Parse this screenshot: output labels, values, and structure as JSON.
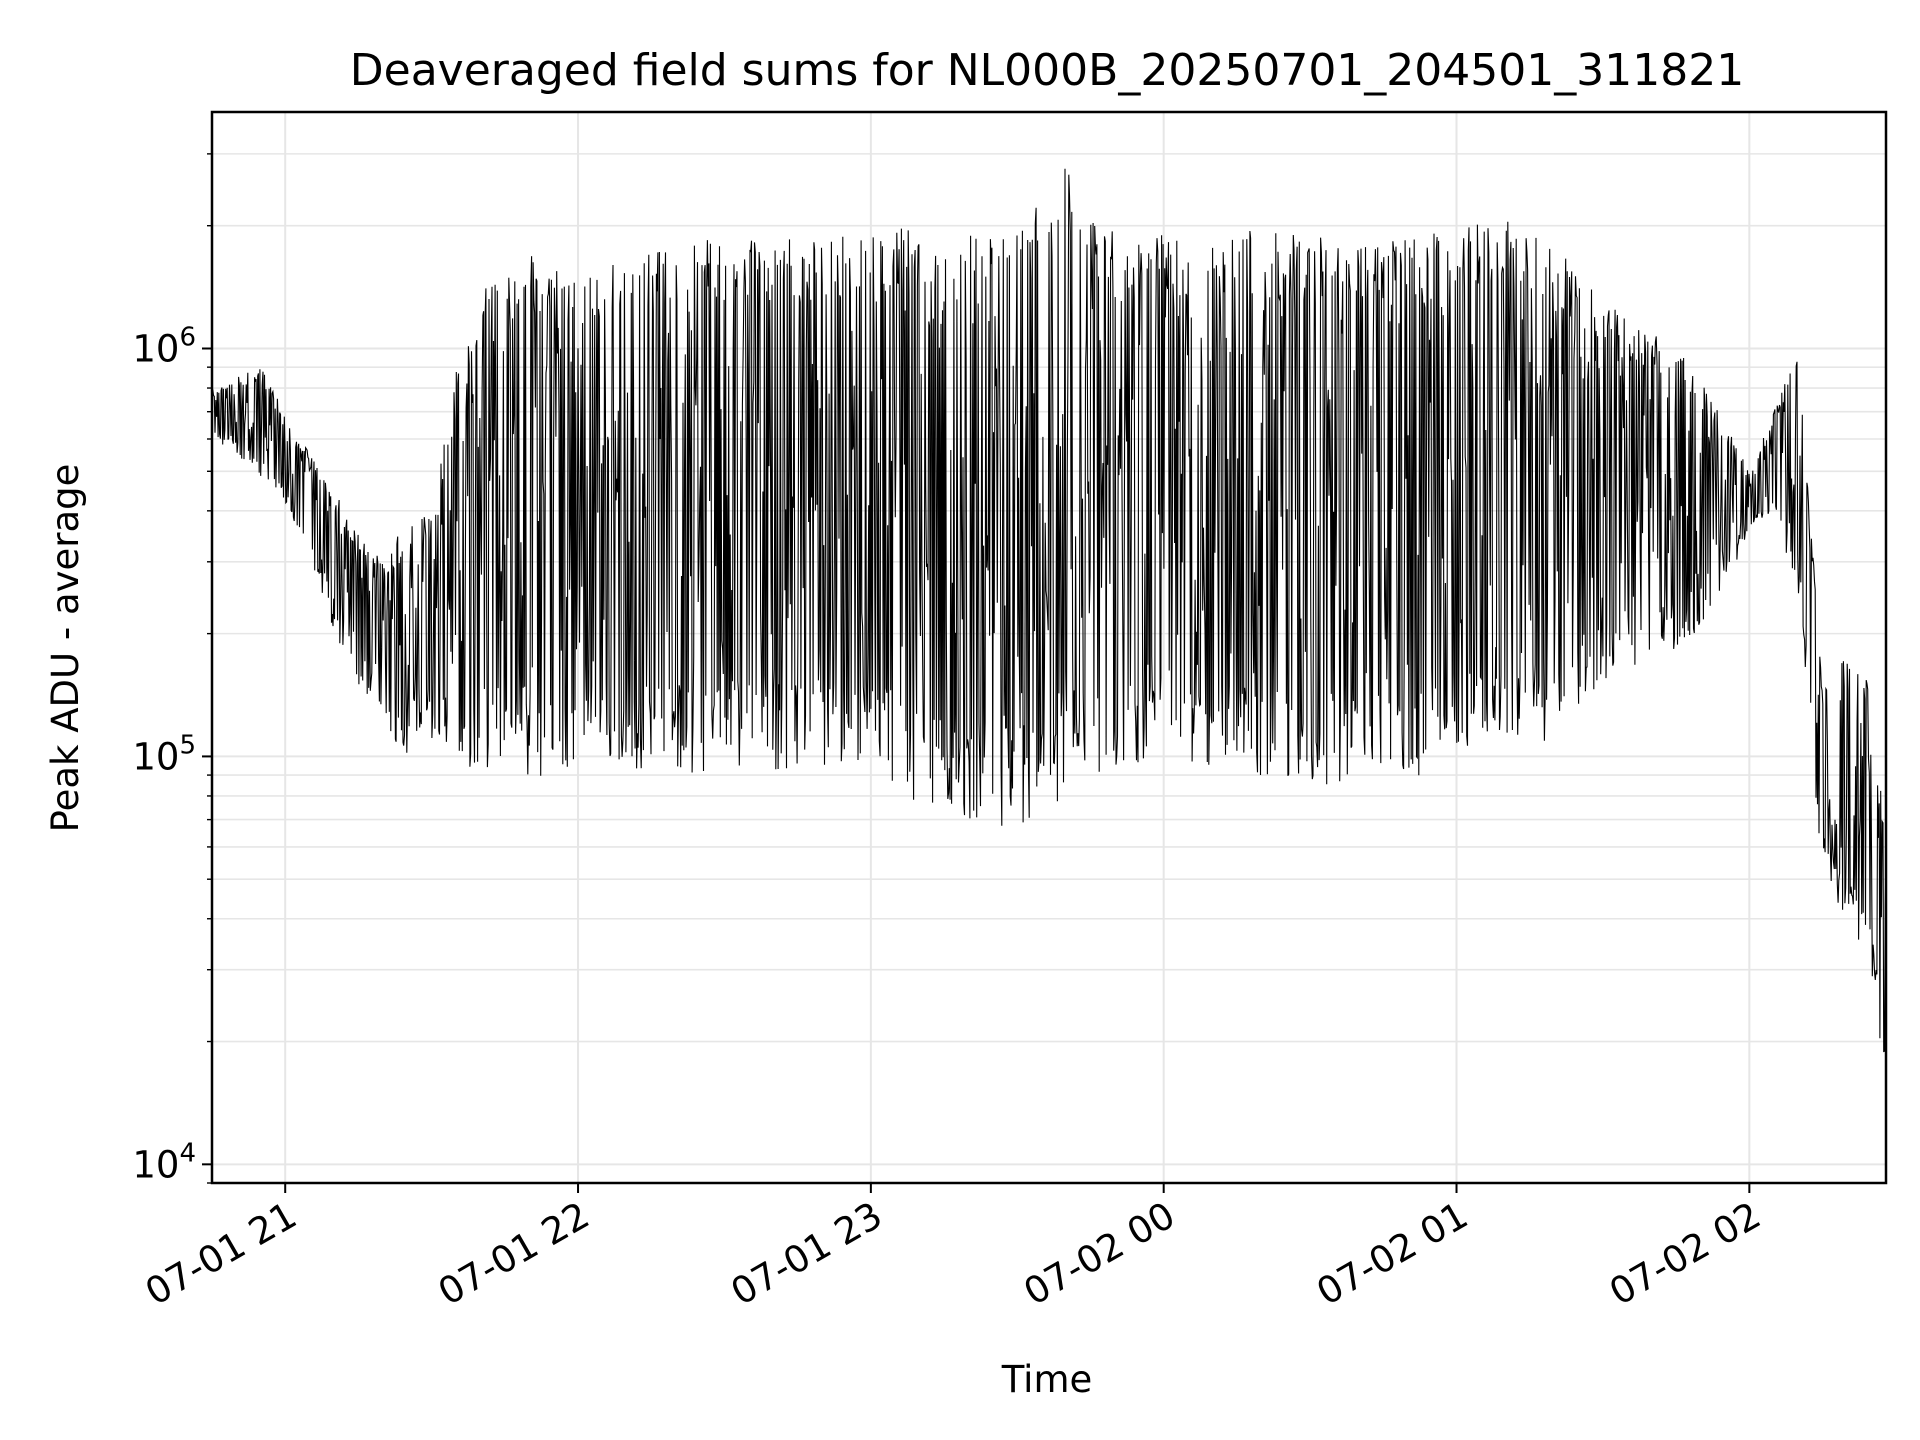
{
  "chart_data": {
    "type": "line",
    "title": "Deaveraged field sums for NL000B_20250701_204501_311821",
    "xlabel": "Time",
    "ylabel": "Peak ADU - average",
    "yscale": "log",
    "ylim": [
      9000,
      3800000
    ],
    "xlim": [
      "2025-07-01 20:45",
      "2025-07-02 02:28"
    ],
    "grid": true,
    "line_color": "#000000",
    "grid_color": "#e6e6e6",
    "x_ticks": [
      {
        "label": "07-01 21",
        "t": "2025-07-01 21:00"
      },
      {
        "label": "07-01 22",
        "t": "2025-07-01 22:00"
      },
      {
        "label": "07-01 23",
        "t": "2025-07-01 23:00"
      },
      {
        "label": "07-02 00",
        "t": "2025-07-02 00:00"
      },
      {
        "label": "07-02 01",
        "t": "2025-07-02 01:00"
      },
      {
        "label": "07-02 02",
        "t": "2025-07-02 02:00"
      }
    ],
    "y_ticks": [
      {
        "base": "10",
        "exp": "4",
        "value": 10000
      },
      {
        "base": "10",
        "exp": "5",
        "value": 100000
      },
      {
        "base": "10",
        "exp": "6",
        "value": 1000000
      }
    ],
    "series": [
      {
        "x": [
          "2025-07-01 20:45",
          "2025-07-01 20:50",
          "2025-07-01 20:55",
          "2025-07-01 21:00",
          "2025-07-01 21:05",
          "2025-07-01 21:10",
          "2025-07-01 21:15",
          "2025-07-01 21:20",
          "2025-07-01 21:25",
          "2025-07-01 21:30",
          "2025-07-01 21:35",
          "2025-07-01 21:40",
          "2025-07-01 21:45",
          "2025-07-01 21:50",
          "2025-07-01 21:55",
          "2025-07-01 22:00",
          "2025-07-01 22:10",
          "2025-07-01 22:20",
          "2025-07-01 22:30",
          "2025-07-01 22:40",
          "2025-07-01 22:50",
          "2025-07-01 23:00",
          "2025-07-01 23:10",
          "2025-07-01 23:20",
          "2025-07-01 23:30",
          "2025-07-01 23:40",
          "2025-07-01 23:50",
          "2025-07-02 00:00",
          "2025-07-02 00:10",
          "2025-07-02 00:20",
          "2025-07-02 00:30",
          "2025-07-02 00:40",
          "2025-07-02 00:50",
          "2025-07-02 01:00",
          "2025-07-02 01:10",
          "2025-07-02 01:20",
          "2025-07-02 01:30",
          "2025-07-02 01:40",
          "2025-07-02 01:50",
          "2025-07-02 02:00",
          "2025-07-02 02:05",
          "2025-07-02 02:10",
          "2025-07-02 02:15",
          "2025-07-02 02:20",
          "2025-07-02 02:25",
          "2025-07-02 02:28"
        ],
        "upper": [
          800000,
          850000,
          900000,
          700000,
          550000,
          450000,
          350000,
          300000,
          380000,
          400000,
          900000,
          1400000,
          1500000,
          1700000,
          1600000,
          1600000,
          1750000,
          1800000,
          1900000,
          1850000,
          1900000,
          2000000,
          1950000,
          1900000,
          2000000,
          2800000,
          1900000,
          1900000,
          2000000,
          1950000,
          1900000,
          1800000,
          1850000,
          2000000,
          2100000,
          1800000,
          1300000,
          1100000,
          900000,
          500000,
          700000,
          1000000,
          150000,
          180000,
          150000,
          60000
        ],
        "lower": [
          600000,
          550000,
          480000,
          420000,
          300000,
          200000,
          150000,
          120000,
          100000,
          110000,
          100000,
          90000,
          95000,
          90000,
          85000,
          95000,
          90000,
          88000,
          95000,
          93000,
          92000,
          95000,
          75000,
          70000,
          65000,
          80000,
          90000,
          100000,
          95000,
          85000,
          80000,
          90000,
          85000,
          95000,
          100000,
          110000,
          150000,
          170000,
          200000,
          350000,
          400000,
          250000,
          50000,
          40000,
          30000,
          15000
        ]
      }
    ]
  }
}
